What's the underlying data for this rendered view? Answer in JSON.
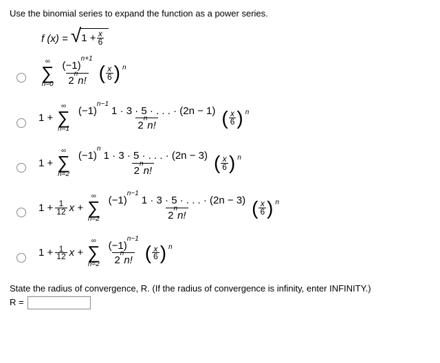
{
  "question": "Use the binomial series to expand the function as a power series.",
  "function": {
    "lhs": "f (x) = ",
    "under_root_prefix": "1 + ",
    "root_frac_num": "x",
    "root_frac_den": "6"
  },
  "sigma": "∑",
  "infty": "∞",
  "options": [
    {
      "type": "A",
      "sum_from": "n=0",
      "frac_num": "(−1)",
      "frac_num_sup": "n+1",
      "frac_den_a": "2",
      "frac_den_sup": "n",
      "frac_den_b": "n!",
      "tail_num": "x",
      "tail_den": "6",
      "tail_pow": "n"
    },
    {
      "type": "B",
      "lead": "1 + ",
      "sum_from": "n=1",
      "num_a": "(−1)",
      "num_sup": "n−1",
      "num_b": " 1 · 3 · 5 · . . . · (2n − 1)",
      "den_a": "2",
      "den_sup": "n",
      "den_b": "n!",
      "tail_num": "x",
      "tail_den": "6",
      "tail_pow": "n"
    },
    {
      "type": "B",
      "lead": "1 + ",
      "sum_from": "n=2",
      "num_a": "(−1)",
      "num_sup": "n",
      "num_b": " 1 · 3 · 5 · . . . · (2n − 3)",
      "den_a": "2",
      "den_sup": "n",
      "den_b": "n!",
      "tail_num": "x",
      "tail_den": "6",
      "tail_pow": "n"
    },
    {
      "type": "C",
      "lead": "1 + ",
      "f1_num": "1",
      "f1_den": "12",
      "var": "x + ",
      "sum_from": "n=2",
      "num_a": "(−1)",
      "num_sup": "n−1",
      "num_b": " 1 · 3 · 5 · . . . · (2n − 3)",
      "den_a": "2",
      "den_sup": "n",
      "den_b": "n!",
      "tail_num": "x",
      "tail_den": "6",
      "tail_pow": "n"
    },
    {
      "type": "C",
      "lead": "1 + ",
      "f1_num": "1",
      "f1_den": "12",
      "var": "x + ",
      "sum_from": "n=2",
      "num_a": "(−1)",
      "num_sup": "n−1",
      "num_b": "",
      "den_a": "2",
      "den_sup": "n",
      "den_b": "n!",
      "tail_num": "x",
      "tail_den": "6",
      "tail_pow": "n"
    }
  ],
  "convergence_text": "State the radius of convergence, R. (If the radius of convergence is infinity, enter INFINITY.)",
  "R_label": "R ="
}
